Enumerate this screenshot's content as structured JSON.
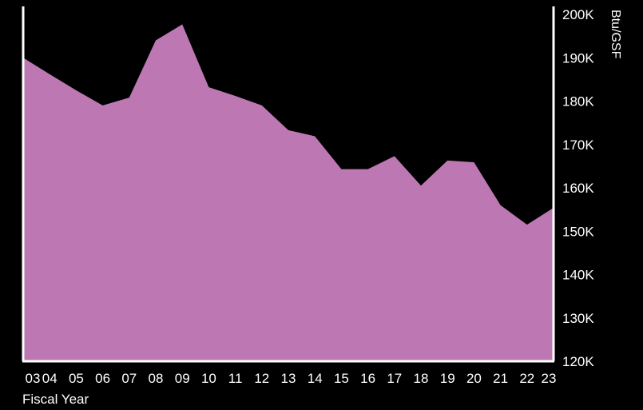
{
  "chart_data": {
    "type": "area",
    "title": "",
    "xlabel": "Fiscal Year",
    "ylabel": "Btu/GSF",
    "categories": [
      "03",
      "04",
      "05",
      "06",
      "07",
      "08",
      "09",
      "10",
      "11",
      "12",
      "13",
      "14",
      "15",
      "16",
      "17",
      "18",
      "19",
      "20",
      "21",
      "22",
      "23"
    ],
    "values": [
      190000,
      186200,
      182500,
      179000,
      180800,
      194000,
      197700,
      183200,
      181200,
      179000,
      173300,
      171900,
      164300,
      164300,
      167300,
      160500,
      166300,
      165900,
      156000,
      151500,
      155400
    ],
    "ylim": [
      120000,
      200000
    ],
    "yticks": [
      {
        "value": 200000,
        "label": "200K"
      },
      {
        "value": 190000,
        "label": "190K"
      },
      {
        "value": 180000,
        "label": "180K"
      },
      {
        "value": 170000,
        "label": "170K"
      },
      {
        "value": 160000,
        "label": "160K"
      },
      {
        "value": 150000,
        "label": "150K"
      },
      {
        "value": 140000,
        "label": "140K"
      },
      {
        "value": 130000,
        "label": "130K"
      },
      {
        "value": 120000,
        "label": "120K"
      }
    ],
    "grid": false,
    "colors": {
      "background": "#000000",
      "area": "#bd78b4",
      "axis": "#ffffff",
      "text": "#ffffff"
    }
  }
}
